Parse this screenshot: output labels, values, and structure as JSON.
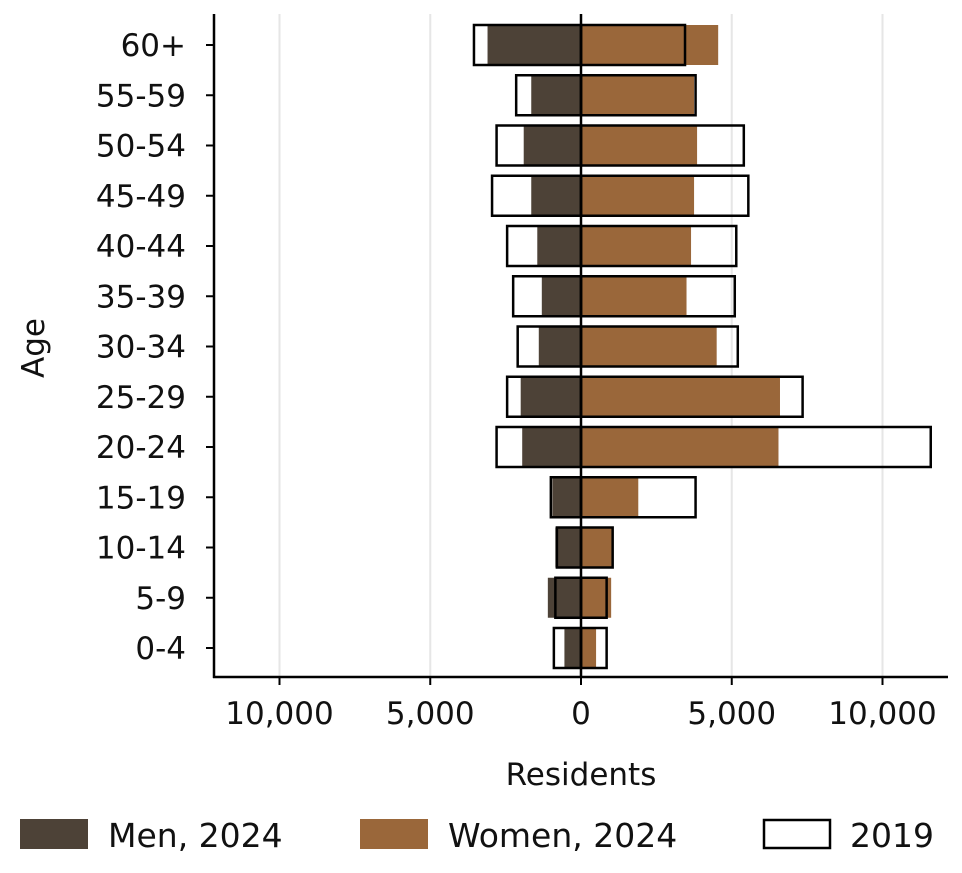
{
  "chart_data": {
    "type": "bar",
    "orientation": "horizontal",
    "subtype": "population-pyramid",
    "xlabel": "Residents",
    "ylabel": "Age",
    "xlim": [
      -12200,
      12200
    ],
    "xticks": [
      -10000,
      -5000,
      0,
      5000,
      10000
    ],
    "xtick_labels": [
      "10,000",
      "5,000",
      "0",
      "5,000",
      "10,000"
    ],
    "grid": "vertical",
    "legend": "bottom",
    "categories": [
      "0-4",
      "5-9",
      "10-14",
      "15-19",
      "20-24",
      "25-29",
      "30-34",
      "35-39",
      "40-44",
      "45-49",
      "50-54",
      "55-59",
      "60+"
    ],
    "series": [
      {
        "name": "Men, 2024",
        "side": "left",
        "color": "#4d4237",
        "values": [
          550,
          1100,
          850,
          950,
          1950,
          2000,
          1400,
          1300,
          1450,
          1650,
          1900,
          1650,
          3100
        ]
      },
      {
        "name": "Women, 2024",
        "side": "right",
        "color": "#9a673a",
        "values": [
          500,
          1000,
          1050,
          1900,
          6550,
          6600,
          4500,
          3500,
          3650,
          3750,
          3850,
          3750,
          4550
        ]
      },
      {
        "name": "2019",
        "style": "outline",
        "color": "#000000",
        "left_values": [
          900,
          850,
          800,
          1000,
          2800,
          2450,
          2100,
          2250,
          2450,
          2950,
          2800,
          2150,
          3550
        ],
        "right_values": [
          850,
          850,
          1050,
          3800,
          11600,
          7350,
          5200,
          5100,
          5150,
          5550,
          5400,
          3800,
          3450
        ]
      }
    ]
  }
}
